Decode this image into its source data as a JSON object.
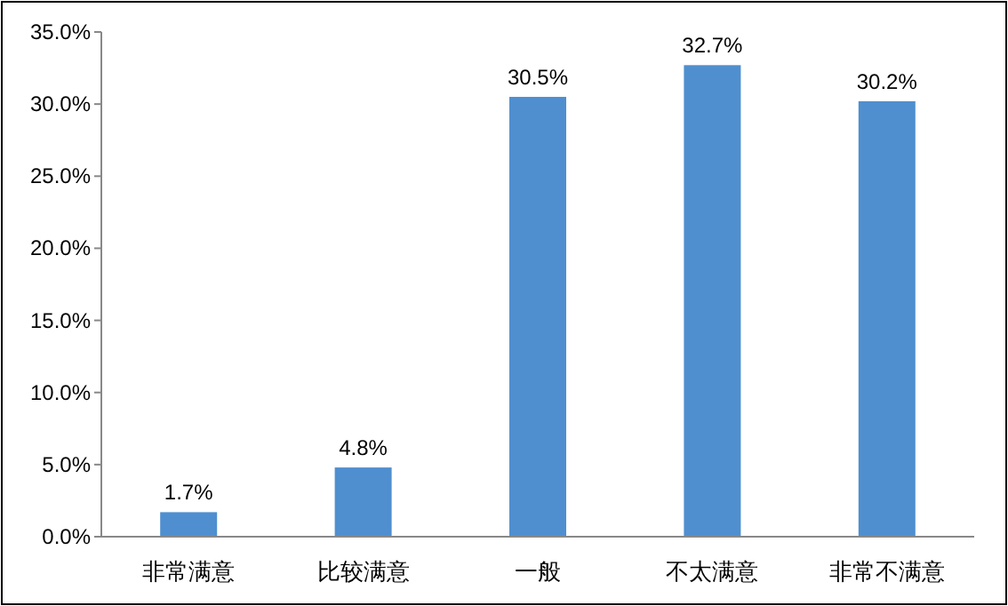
{
  "chart_data": {
    "type": "bar",
    "categories": [
      "非常满意",
      "比较满意",
      "一般",
      "不太满意",
      "非常不满意"
    ],
    "values": [
      1.7,
      4.8,
      30.5,
      32.7,
      30.2
    ],
    "value_labels": [
      "1.7%",
      "4.8%",
      "30.5%",
      "32.7%",
      "30.2%"
    ],
    "color": "#4f8fcf",
    "ylim": [
      0,
      35
    ],
    "yticks": [
      {
        "value": 0,
        "label": "0.0%"
      },
      {
        "value": 5,
        "label": "5.0%"
      },
      {
        "value": 10,
        "label": "10.0%"
      },
      {
        "value": 15,
        "label": "15.0%"
      },
      {
        "value": 20,
        "label": "20.0%"
      },
      {
        "value": 25,
        "label": "25.0%"
      },
      {
        "value": 30,
        "label": "30.0%"
      },
      {
        "value": 35,
        "label": "35.0%"
      }
    ],
    "grid": false
  }
}
